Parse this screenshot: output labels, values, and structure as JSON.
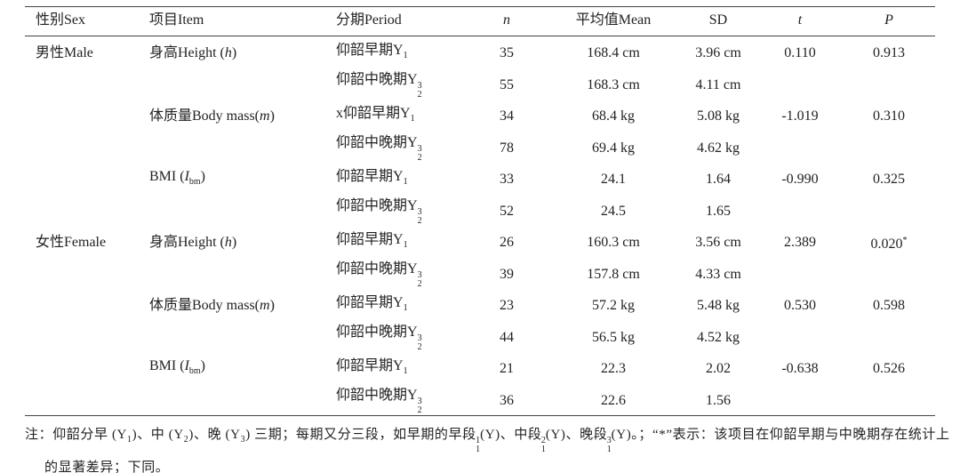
{
  "table": {
    "header": [
      "性别Sex",
      "项目Item",
      "分期Period",
      "n",
      "平均值Mean",
      "SD",
      "t",
      "P"
    ],
    "rows": [
      [
        "男性Male",
        [
          {
            "text": "身高Height ("
          },
          {
            "text": "h",
            "italic": true
          },
          {
            "text": ")"
          }
        ],
        [
          {
            "text": "仰韶早期Y",
            "sub": "1"
          }
        ],
        "35",
        "168.4 cm",
        "3.96 cm",
        "0.110",
        "0.913"
      ],
      [
        null,
        null,
        [
          {
            "text": "仰韶中晚期Y",
            "sup": "3",
            "sub": "2"
          }
        ],
        "55",
        "168.3 cm",
        "4.11 cm",
        null,
        null
      ],
      [
        null,
        [
          {
            "text": "体质量Body mass("
          },
          {
            "text": "m",
            "italic": true
          },
          {
            "text": ")"
          }
        ],
        [
          {
            "text": "x仰韶早期Y",
            "sub": "1"
          }
        ],
        "34",
        "68.4 kg",
        "5.08 kg",
        "-1.019",
        "0.310"
      ],
      [
        null,
        null,
        [
          {
            "text": "仰韶中晚期Y",
            "sup": "3",
            "sub": "2"
          }
        ],
        "78",
        "69.4 kg",
        "4.62 kg",
        null,
        null
      ],
      [
        null,
        [
          {
            "text": "BMI ("
          },
          {
            "text": "I",
            "italic": true,
            "sub": "bm"
          },
          {
            "text": ")"
          }
        ],
        [
          {
            "text": "仰韶早期Y",
            "sub": "1"
          }
        ],
        "33",
        "24.1",
        "1.64",
        "-0.990",
        "0.325"
      ],
      [
        null,
        null,
        [
          {
            "text": "仰韶中晚期Y",
            "sup": "3",
            "sub": "2"
          }
        ],
        "52",
        "24.5",
        "1.65",
        null,
        null
      ],
      [
        "女性Female",
        [
          {
            "text": "身高Height ("
          },
          {
            "text": "h",
            "italic": true
          },
          {
            "text": ")"
          }
        ],
        [
          {
            "text": "仰韶早期Y",
            "sub": "1"
          }
        ],
        "26",
        "160.3 cm",
        "3.56 cm",
        "2.389",
        [
          {
            "text": "0.020",
            "sup": "*"
          }
        ]
      ],
      [
        null,
        null,
        [
          {
            "text": "仰韶中晚期Y",
            "sup": "3",
            "sub": "2"
          }
        ],
        "39",
        "157.8 cm",
        "4.33 cm",
        null,
        null
      ],
      [
        null,
        [
          {
            "text": "体质量Body mass("
          },
          {
            "text": "m",
            "italic": true
          },
          {
            "text": ")"
          }
        ],
        [
          {
            "text": "仰韶早期Y",
            "sub": "1"
          }
        ],
        "23",
        "57.2 kg",
        "5.48 kg",
        "0.530",
        "0.598"
      ],
      [
        null,
        null,
        [
          {
            "text": "仰韶中晚期Y",
            "sup": "3",
            "sub": "2"
          }
        ],
        "44",
        "56.5 kg",
        "4.52 kg",
        null,
        null
      ],
      [
        null,
        [
          {
            "text": "BMI ("
          },
          {
            "text": "I",
            "italic": true,
            "sub": "bm"
          },
          {
            "text": ")"
          }
        ],
        [
          {
            "text": "仰韶早期Y",
            "sub": "1"
          }
        ],
        "21",
        "22.3",
        "2.02",
        "-0.638",
        "0.526"
      ],
      [
        null,
        null,
        [
          {
            "text": "仰韶中晚期Y",
            "sup": "3",
            "sub": "2"
          }
        ],
        "36",
        "22.6",
        "1.56",
        null,
        null
      ]
    ],
    "note": [
      {
        "text": "注：仰韶分早 ("
      },
      {
        "text": "Y",
        "sub": "1"
      },
      {
        "text": ")、中 ("
      },
      {
        "text": "Y",
        "sub": "2"
      },
      {
        "text": ")、晚 ("
      },
      {
        "text": "Y",
        "sub": "3"
      },
      {
        "text": ") 三期；每期又分三段，如早期的早段 ("
      },
      {
        "text": "Y",
        "sup": "1",
        "sub": "1"
      },
      {
        "text": ")、中段 ("
      },
      {
        "text": "Y",
        "sup": "2",
        "sub": "1"
      },
      {
        "text": ")、晚段 ("
      },
      {
        "text": "Y",
        "sup": "3",
        "sub": "1"
      },
      {
        "text": ")。；“*”表示：该项目在仰韶早期与中晚期存在统计上的显著差异；下同。"
      }
    ]
  }
}
